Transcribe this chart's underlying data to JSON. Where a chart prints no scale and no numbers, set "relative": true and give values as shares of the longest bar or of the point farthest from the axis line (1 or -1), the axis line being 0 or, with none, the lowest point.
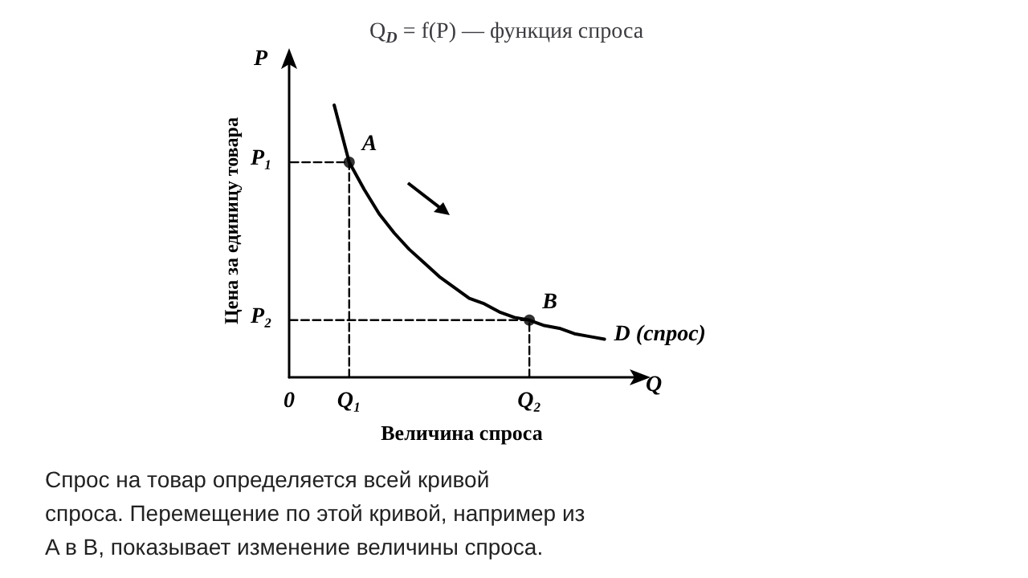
{
  "chart_data": {
    "type": "line",
    "title": "Q$_{D}$ = f(P) — функция спроса",
    "xlabel": "Величина спроса",
    "ylabel": "Цена за единицу товара",
    "relative": true,
    "categories": [
      "0",
      null,
      null,
      null,
      "Q₁",
      null,
      null,
      null,
      null,
      null,
      null,
      null,
      null,
      null,
      null,
      null,
      "Q₂",
      null,
      null,
      null,
      null,
      null,
      null,
      null
    ],
    "grid": false,
    "series": [
      {
        "color": "#000000",
        "marker": "none",
        "line_style": "solid",
        "values": [
          null,
          null,
          null,
          1,
          0.79,
          0.69,
          0.6,
          0.53,
          0.47,
          0.42,
          0.37,
          0.33,
          0.29,
          0.27,
          0.24,
          0.22,
          0.21,
          0.19,
          0.18,
          0.16,
          0.15,
          0.14,
          null,
          null
        ]
      },
      {
        "type": "scatter",
        "color": "#000000",
        "marker": "circle",
        "x": [
          "Q₁",
          "Q₂"
        ],
        "values": [
          0.79,
          0.21
        ]
      },
      {
        "color": "#000000",
        "marker": "none",
        "line_style": "dashed",
        "x": [
          "Q₁",
          "Q₁",
          "0"
        ],
        "values": [
          0,
          0.79,
          0.79
        ]
      },
      {
        "color": "#000000",
        "marker": "none",
        "line_style": "dashed",
        "x": [
          "Q₂",
          "Q₂",
          "0"
        ],
        "values": [
          0,
          0.21,
          0.21
        ]
      }
    ],
    "annotations": [
      {
        "text": "A",
        "x": "Q₁",
        "y": 0.79
      },
      {
        "text": "B",
        "x": "Q₂",
        "y": 0.21
      },
      "P₁",
      "P₂",
      "P",
      "Q",
      "D (спрос)",
      "Спрос на товар определяется всей кривой спроса. Перемещение по этой кривой, например из A в B, показывает изменение величины спроса."
    ]
  }
}
